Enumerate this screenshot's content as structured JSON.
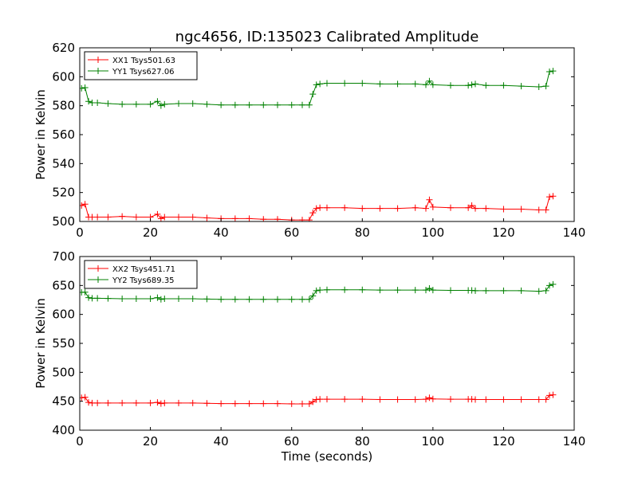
{
  "figure": {
    "title": "ngc4656, ID:135023 Calibrated Amplitude",
    "xlabel": "Time (seconds)"
  },
  "colors": {
    "XX": "#ff0000",
    "YY": "#008000"
  },
  "chart_data": [
    {
      "type": "line",
      "title": "ngc4656, ID:135023 Calibrated Amplitude",
      "xlabel": "",
      "ylabel": "Power in Kelvin",
      "xlim": [
        0,
        140
      ],
      "ylim": [
        500,
        620
      ],
      "xticks": [
        0,
        20,
        40,
        60,
        80,
        100,
        120,
        140
      ],
      "yticks": [
        500,
        520,
        540,
        560,
        580,
        600,
        620
      ],
      "legend_position": "top-left",
      "marker": "+",
      "series": [
        {
          "name": "XX1 Tsys501.63",
          "color": "#ff0000",
          "x": [
            0.5,
            1.5,
            2.5,
            3.5,
            5,
            8,
            12,
            16,
            20,
            22,
            23,
            24,
            28,
            32,
            36,
            40,
            44,
            48,
            52,
            56,
            60,
            63,
            65,
            66,
            67,
            68,
            70,
            75,
            80,
            85,
            90,
            95,
            98,
            99,
            100,
            105,
            110,
            111,
            112,
            115,
            120,
            125,
            130,
            132,
            133,
            134
          ],
          "y": [
            511,
            512,
            503,
            503,
            503,
            503,
            503.5,
            503,
            503,
            505,
            502,
            503,
            503,
            503,
            502.5,
            502,
            502,
            502,
            501.5,
            501.5,
            501,
            501,
            501,
            506,
            509,
            509.5,
            509.5,
            509.5,
            509,
            509,
            509,
            509.5,
            509,
            515,
            510,
            509.5,
            509.5,
            511,
            509,
            509,
            508.5,
            508.5,
            508,
            508,
            517,
            517.5
          ]
        },
        {
          "name": "YY1 Tsys627.06",
          "color": "#008000",
          "x": [
            0.5,
            1.5,
            2.5,
            3.5,
            5,
            8,
            12,
            16,
            20,
            22,
            23,
            24,
            28,
            32,
            36,
            40,
            44,
            48,
            52,
            56,
            60,
            63,
            65,
            66,
            67,
            68,
            70,
            75,
            80,
            85,
            90,
            95,
            98,
            99,
            100,
            105,
            110,
            111,
            112,
            115,
            120,
            125,
            130,
            132,
            133,
            134
          ],
          "y": [
            592,
            592.5,
            583,
            582,
            582,
            581.5,
            581,
            581,
            581,
            583,
            580,
            581,
            581.5,
            581.5,
            581,
            580.5,
            580.5,
            580.5,
            580.5,
            580.5,
            580.5,
            580.5,
            580.5,
            588,
            594.5,
            595,
            595.5,
            595.5,
            595.5,
            595,
            595,
            595,
            594.5,
            597,
            594.5,
            594,
            594,
            594.5,
            595,
            594,
            594,
            593.5,
            593,
            593.5,
            603.5,
            604
          ]
        }
      ]
    },
    {
      "type": "line",
      "title": "",
      "xlabel": "Time (seconds)",
      "ylabel": "Power in Kelvin",
      "xlim": [
        0,
        140
      ],
      "ylim": [
        400,
        700
      ],
      "xticks": [
        0,
        20,
        40,
        60,
        80,
        100,
        120,
        140
      ],
      "yticks": [
        400,
        450,
        500,
        550,
        600,
        650,
        700
      ],
      "legend_position": "top-left",
      "marker": "+",
      "series": [
        {
          "name": "XX2 Tsys451.71",
          "color": "#ff0000",
          "x": [
            0.5,
            1.5,
            2.5,
            3.5,
            5,
            8,
            12,
            16,
            20,
            22,
            23,
            24,
            28,
            32,
            36,
            40,
            44,
            48,
            52,
            56,
            60,
            63,
            65,
            66,
            67,
            68,
            70,
            75,
            80,
            85,
            90,
            95,
            98,
            99,
            100,
            105,
            110,
            111,
            112,
            115,
            120,
            125,
            130,
            132,
            133,
            134
          ],
          "y": [
            456,
            457,
            448,
            447,
            447,
            447,
            447,
            447,
            447,
            448,
            446,
            447,
            447,
            447,
            446.5,
            446,
            446,
            446,
            446,
            446,
            445.5,
            445.5,
            445.5,
            449,
            453,
            453.5,
            453.5,
            453.5,
            453.5,
            453,
            453,
            453,
            453.5,
            456,
            454,
            453.5,
            453.5,
            453.5,
            453,
            453,
            453,
            453,
            453,
            453,
            460,
            461
          ]
        },
        {
          "name": "YY2 Tsys689.35",
          "color": "#008000",
          "x": [
            0.5,
            1.5,
            2.5,
            3.5,
            5,
            8,
            12,
            16,
            20,
            22,
            23,
            24,
            28,
            32,
            36,
            40,
            44,
            48,
            52,
            56,
            60,
            63,
            65,
            66,
            67,
            68,
            70,
            75,
            80,
            85,
            90,
            95,
            98,
            99,
            100,
            105,
            110,
            111,
            112,
            115,
            120,
            125,
            130,
            132,
            133,
            134
          ],
          "y": [
            638,
            638.5,
            629,
            628,
            628,
            627.5,
            627,
            627,
            627,
            629,
            626,
            627,
            627,
            627,
            626.5,
            626,
            626,
            626,
            626,
            626,
            626,
            626,
            626,
            632,
            641,
            642,
            642.5,
            642.5,
            642.5,
            642,
            642,
            642,
            642,
            645,
            642,
            641.5,
            641.5,
            641.5,
            641,
            641,
            641,
            641,
            640,
            641,
            650,
            652
          ]
        }
      ]
    }
  ]
}
